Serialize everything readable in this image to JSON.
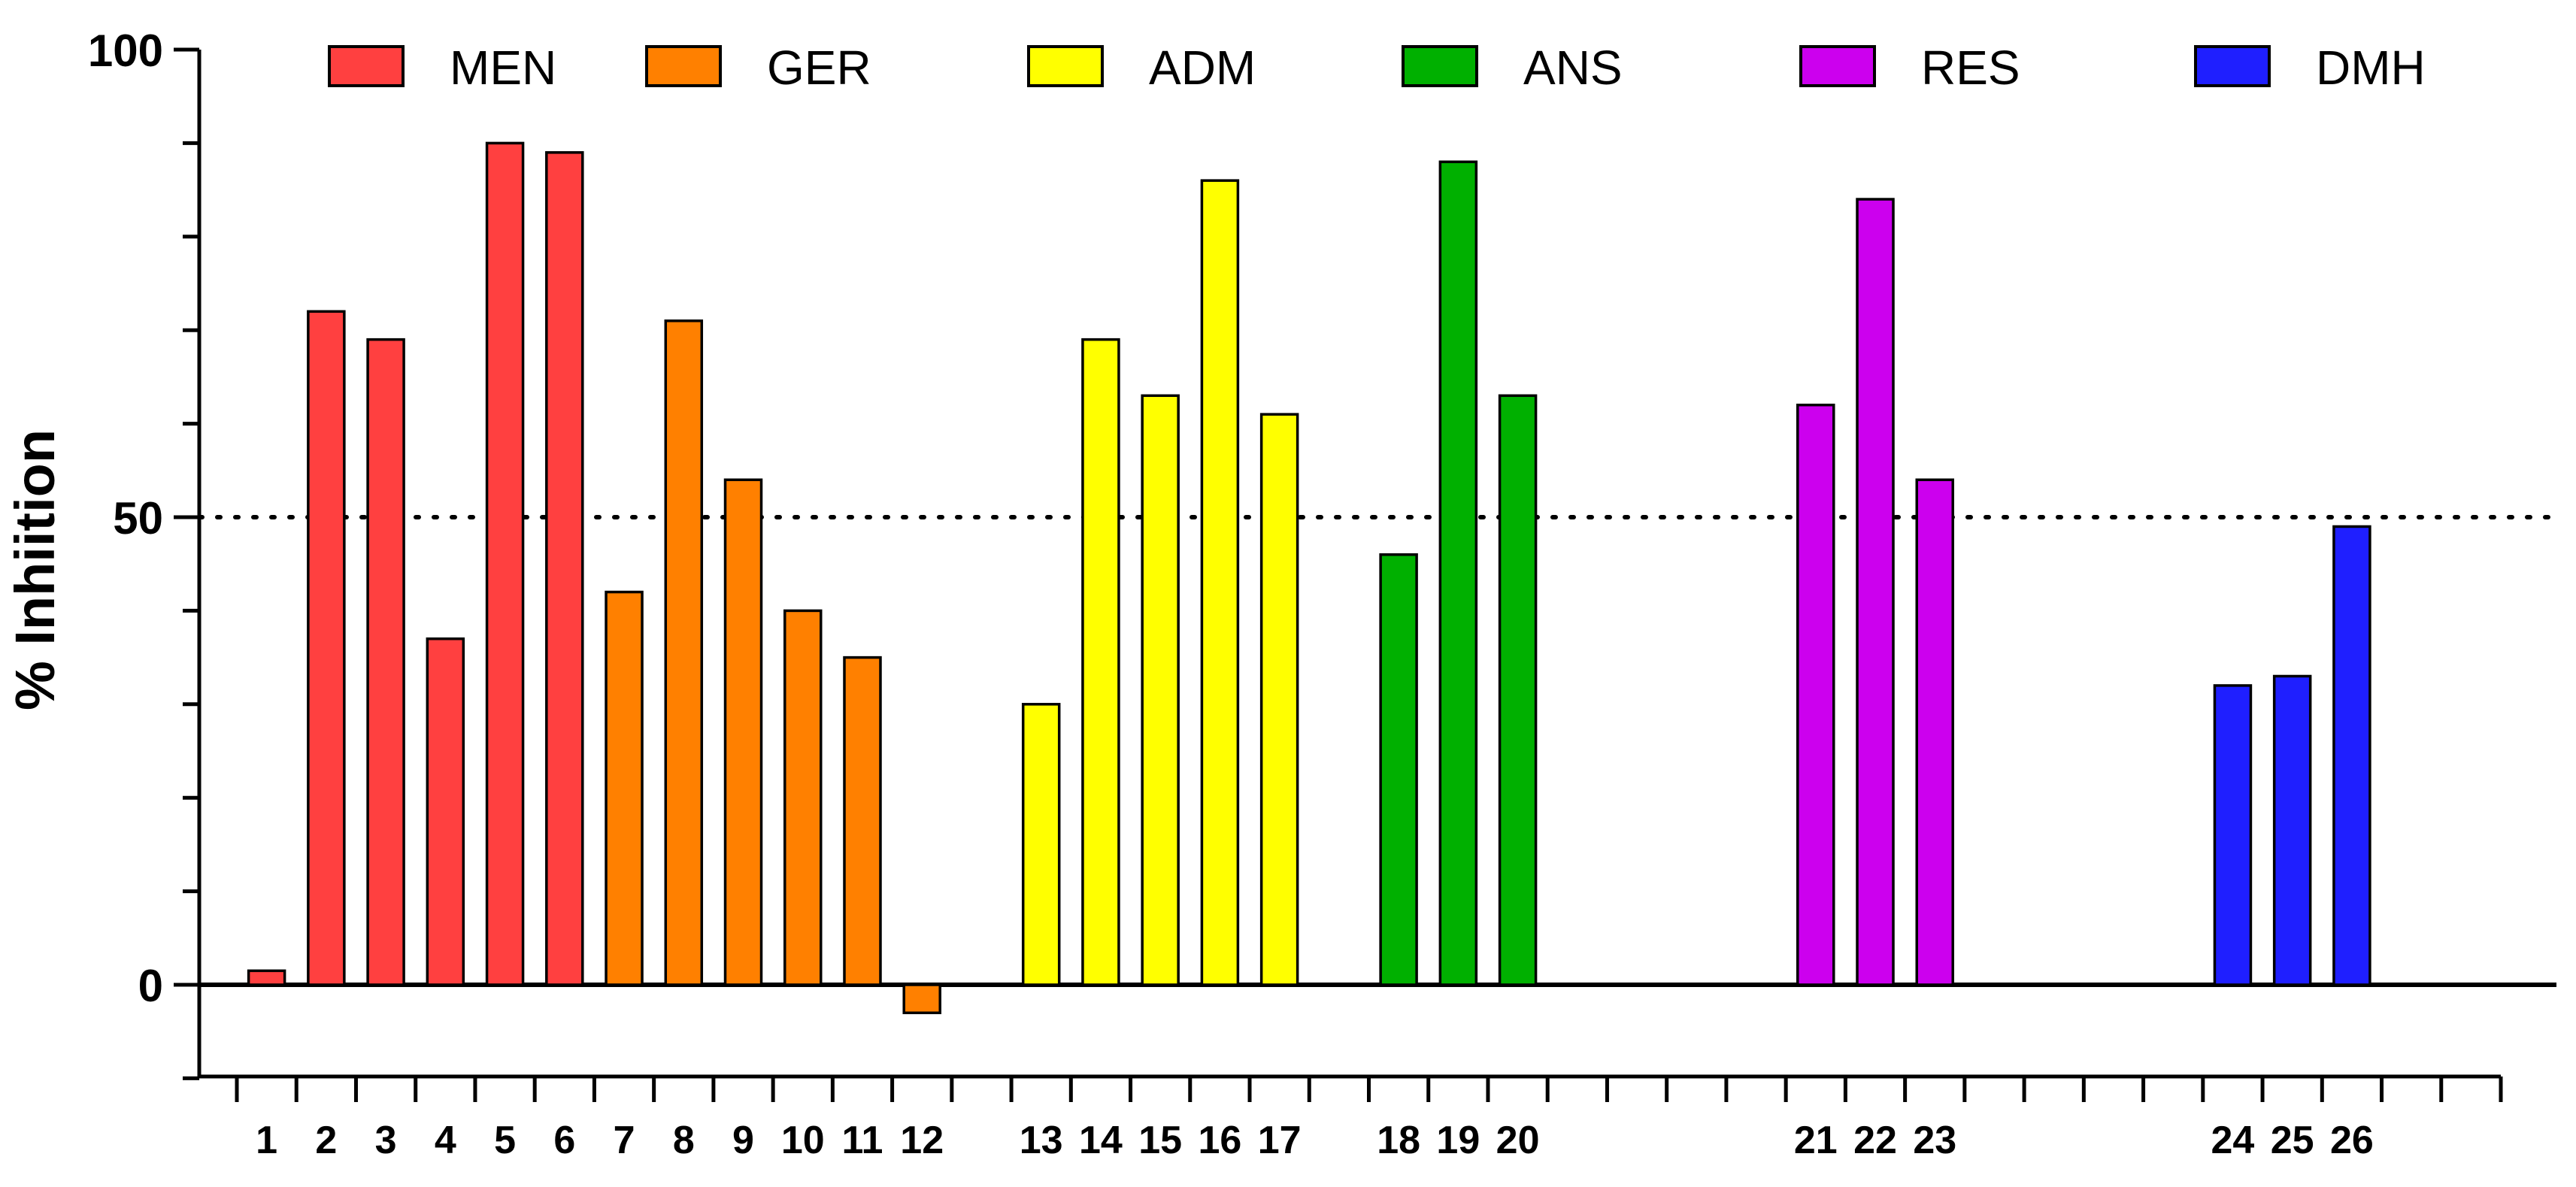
{
  "chart_data": {
    "type": "bar",
    "title": "",
    "ylabel": "% Inhiition",
    "xlabel": "",
    "ylim": [
      -10,
      100
    ],
    "yticks": [
      0,
      50,
      100
    ],
    "reference_line": 50,
    "grid": false,
    "legend_position": "top",
    "groups": [
      {
        "name": "MEN",
        "color": "#ff4040",
        "items": [
          {
            "label": "1",
            "value": 1.5
          },
          {
            "label": "2",
            "value": 72
          },
          {
            "label": "3",
            "value": 69
          },
          {
            "label": "4",
            "value": 37
          },
          {
            "label": "5",
            "value": 90
          },
          {
            "label": "6",
            "value": 89
          }
        ]
      },
      {
        "name": "GER",
        "color": "#ff8000",
        "items": [
          {
            "label": "7",
            "value": 42
          },
          {
            "label": "8",
            "value": 71
          },
          {
            "label": "9",
            "value": 54
          },
          {
            "label": "10",
            "value": 40
          },
          {
            "label": "11",
            "value": 35
          },
          {
            "label": "12",
            "value": -3
          }
        ]
      },
      {
        "name": "ADM",
        "color": "#ffff00",
        "items": [
          {
            "label": "13",
            "value": 30
          },
          {
            "label": "14",
            "value": 69
          },
          {
            "label": "15",
            "value": 63
          },
          {
            "label": "16",
            "value": 86
          },
          {
            "label": "17",
            "value": 61
          }
        ]
      },
      {
        "name": "ANS",
        "color": "#00b000",
        "items": [
          {
            "label": "18",
            "value": 46
          },
          {
            "label": "19",
            "value": 88
          },
          {
            "label": "20",
            "value": 63
          }
        ]
      },
      {
        "name": "RES",
        "color": "#cc00ee",
        "items": [
          {
            "label": "21",
            "value": 62
          },
          {
            "label": "22",
            "value": 84
          },
          {
            "label": "23",
            "value": 54
          }
        ]
      },
      {
        "name": "DMH",
        "color": "#1f1fff",
        "items": [
          {
            "label": "24",
            "value": 32
          },
          {
            "label": "25",
            "value": 33
          },
          {
            "label": "26",
            "value": 49
          }
        ]
      }
    ]
  }
}
